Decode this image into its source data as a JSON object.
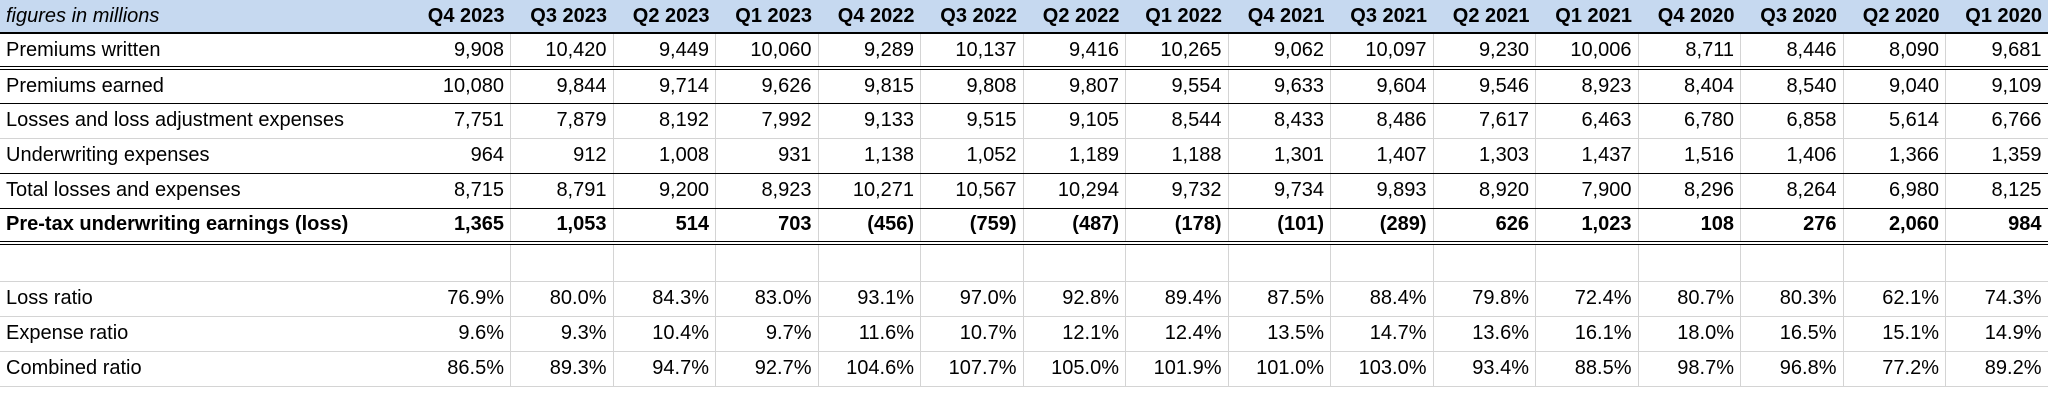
{
  "table": {
    "corner_label": "figures in millions",
    "header_bg": "#c6d9f0",
    "columns": [
      "Q4 2023",
      "Q3 2023",
      "Q2 2023",
      "Q1 2023",
      "Q4 2022",
      "Q3 2022",
      "Q2 2022",
      "Q1 2022",
      "Q4 2021",
      "Q3 2021",
      "Q2 2021",
      "Q1 2021",
      "Q4 2020",
      "Q3 2020",
      "Q2 2020",
      "Q1 2020"
    ],
    "rows": [
      {
        "label": "Premiums written",
        "style": "dbl",
        "values": [
          "9,908",
          "10,420",
          "9,449",
          "10,060",
          "9,289",
          "10,137",
          "9,416",
          "10,265",
          "9,062",
          "10,097",
          "9,230",
          "10,006",
          "8,711",
          "8,446",
          "8,090",
          "9,681"
        ]
      },
      {
        "label": "Premiums earned",
        "style": "blk",
        "values": [
          "10,080",
          "9,844",
          "9,714",
          "9,626",
          "9,815",
          "9,808",
          "9,807",
          "9,554",
          "9,633",
          "9,604",
          "9,546",
          "8,923",
          "8,404",
          "8,540",
          "9,040",
          "9,109"
        ]
      },
      {
        "label": "Losses and loss adjustment expenses",
        "style": "",
        "values": [
          "7,751",
          "7,879",
          "8,192",
          "7,992",
          "9,133",
          "9,515",
          "9,105",
          "8,544",
          "8,433",
          "8,486",
          "7,617",
          "6,463",
          "6,780",
          "6,858",
          "5,614",
          "6,766"
        ]
      },
      {
        "label": "Underwriting expenses",
        "style": "blk",
        "values": [
          "964",
          "912",
          "1,008",
          "931",
          "1,138",
          "1,052",
          "1,189",
          "1,188",
          "1,301",
          "1,407",
          "1,303",
          "1,437",
          "1,516",
          "1,406",
          "1,366",
          "1,359"
        ]
      },
      {
        "label": "Total losses and expenses",
        "style": "blk",
        "values": [
          "8,715",
          "8,791",
          "9,200",
          "8,923",
          "10,271",
          "10,567",
          "10,294",
          "9,732",
          "9,734",
          "9,893",
          "8,920",
          "7,900",
          "8,296",
          "8,264",
          "6,980",
          "8,125"
        ]
      },
      {
        "label": "Pre-tax underwriting earnings (loss)",
        "style": "bold dbl",
        "values": [
          "1,365",
          "1,053",
          "514",
          "703",
          "(456)",
          "(759)",
          "(487)",
          "(178)",
          "(101)",
          "(289)",
          "626",
          "1,023",
          "108",
          "276",
          "2,060",
          "984"
        ]
      },
      {
        "label": "",
        "style": "blank",
        "values": [
          "",
          "",
          "",
          "",
          "",
          "",
          "",
          "",
          "",
          "",
          "",
          "",
          "",
          "",
          "",
          ""
        ]
      },
      {
        "label": "Loss ratio",
        "style": "",
        "values": [
          "76.9%",
          "80.0%",
          "84.3%",
          "83.0%",
          "93.1%",
          "97.0%",
          "92.8%",
          "89.4%",
          "87.5%",
          "88.4%",
          "79.8%",
          "72.4%",
          "80.7%",
          "80.3%",
          "62.1%",
          "74.3%"
        ]
      },
      {
        "label": "Expense ratio",
        "style": "",
        "values": [
          "9.6%",
          "9.3%",
          "10.4%",
          "9.7%",
          "11.6%",
          "10.7%",
          "12.1%",
          "12.4%",
          "13.5%",
          "14.7%",
          "13.6%",
          "16.1%",
          "18.0%",
          "16.5%",
          "15.1%",
          "14.9%"
        ]
      },
      {
        "label": "Combined ratio",
        "style": "",
        "values": [
          "86.5%",
          "89.3%",
          "94.7%",
          "92.7%",
          "104.6%",
          "107.7%",
          "105.0%",
          "101.9%",
          "101.0%",
          "103.0%",
          "93.4%",
          "88.5%",
          "98.7%",
          "96.8%",
          "77.2%",
          "89.2%"
        ]
      }
    ]
  }
}
